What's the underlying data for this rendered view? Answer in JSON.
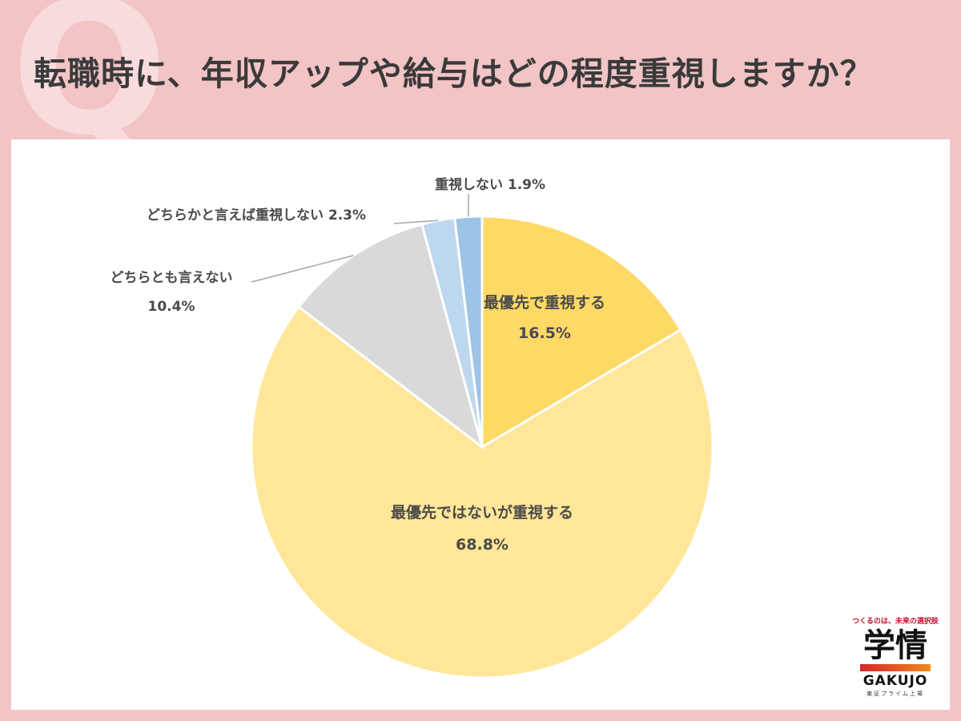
{
  "q_mark": "Q",
  "header": {
    "title": "転職時に、年収アップや給与はどの程度重視しますか？"
  },
  "chart_data": {
    "type": "pie",
    "title": "転職時に、年収アップや給与はどの程度重視しますか？",
    "slices": [
      {
        "label": "最優先で重視する",
        "value": 16.5,
        "value_label": "16.5%",
        "color": "#ffd966"
      },
      {
        "label": "最優先ではないが重視する",
        "value": 68.8,
        "value_label": "68.8%",
        "color": "#ffe699"
      },
      {
        "label": "どちらとも言えない",
        "value": 10.4,
        "value_label": "10.4%",
        "color": "#d9d9d9"
      },
      {
        "label": "どちらかと言えば重視しない",
        "value": 2.3,
        "value_label": "2.3%",
        "color": "#bdd7ee"
      },
      {
        "label": "重視しない",
        "value": 1.9,
        "value_label": "1.9%",
        "color": "#9dc3e6"
      }
    ]
  },
  "logo": {
    "tagline": "つくるのは、未来の選択肢",
    "main": "学情",
    "english": "GAKUJO",
    "sub": "東証プライム上場"
  }
}
